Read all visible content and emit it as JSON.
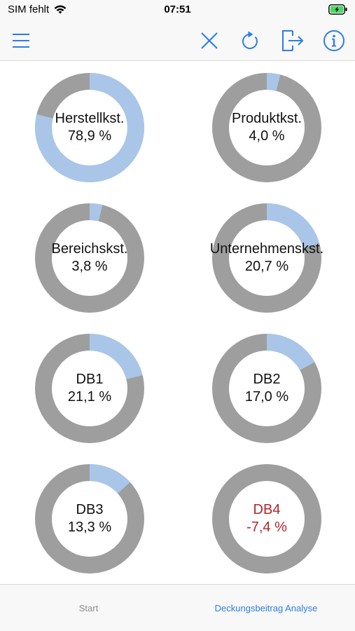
{
  "status_bar": {
    "carrier": "SIM fehlt",
    "time": "07:51"
  },
  "colors": {
    "accent": "#2b7de9",
    "donut_track": "#9e9e9e",
    "donut_fill": "#a9c6e8",
    "negative": "#b3262a"
  },
  "navbar": {
    "icons": [
      "menu-icon",
      "close-icon",
      "refresh-icon",
      "export-icon",
      "info-icon"
    ]
  },
  "charts": [
    {
      "label": "Herstellkst.",
      "value_text": "78,9 %",
      "value": 78.9,
      "negative": false
    },
    {
      "label": "Produktkst.",
      "value_text": "4,0 %",
      "value": 4.0,
      "negative": false
    },
    {
      "label": "Bereichskst.",
      "value_text": "3,8 %",
      "value": 3.8,
      "negative": false
    },
    {
      "label": "Unternehmenskst.",
      "value_text": "20,7 %",
      "value": 20.7,
      "negative": false
    },
    {
      "label": "DB1",
      "value_text": "21,1 %",
      "value": 21.1,
      "negative": false
    },
    {
      "label": "DB2",
      "value_text": "17,0 %",
      "value": 17.0,
      "negative": false
    },
    {
      "label": "DB3",
      "value_text": "13,3 %",
      "value": 13.3,
      "negative": false
    },
    {
      "label": "DB4",
      "value_text": "-7,4 %",
      "value": -7.4,
      "negative": true
    }
  ],
  "tabbar": {
    "tabs": [
      {
        "label": "Start",
        "active": false
      },
      {
        "label": "Deckungsbeitrag Analyse",
        "active": true
      }
    ]
  }
}
